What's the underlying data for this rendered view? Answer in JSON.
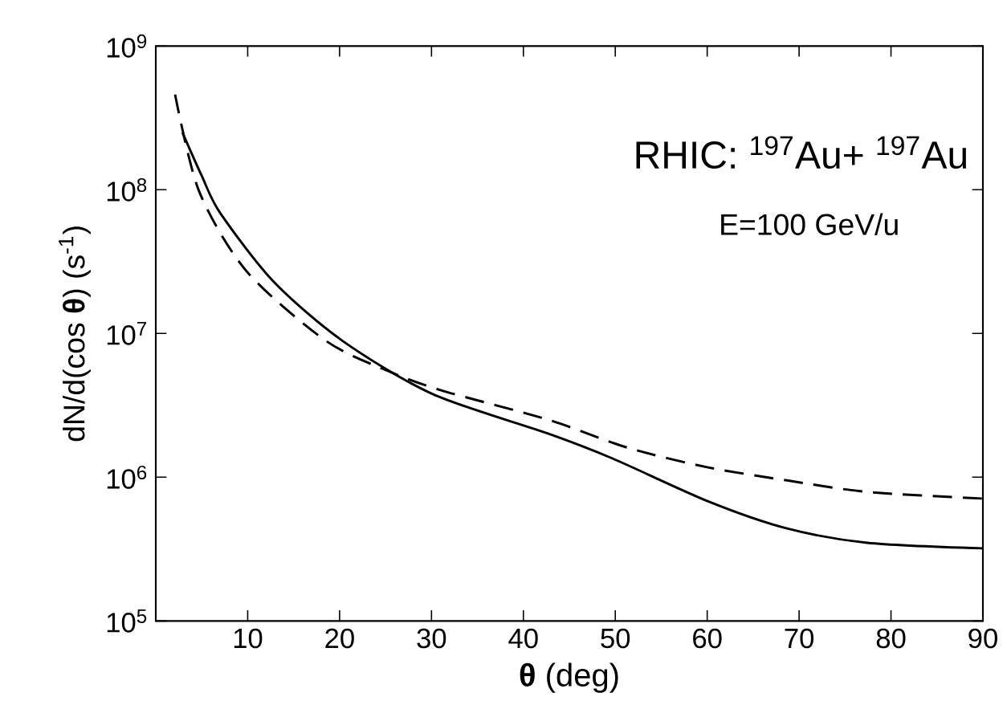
{
  "chart_data": {
    "type": "line",
    "xlabel": "**θ** (deg)",
    "ylabel": "dN/d(cos **θ**)  (s$^{-1}$)",
    "annotations": [
      "RHIC: $^{197}$Au+ $^{197}$Au",
      "E=100 GeV/u"
    ],
    "log": "y",
    "xlim": [
      0,
      90
    ],
    "ylim": [
      100000,
      1000000000
    ],
    "xticks": [
      10,
      20,
      30,
      40,
      50,
      60,
      70,
      80,
      90
    ],
    "yticks": [
      {
        "value": 100000,
        "label": "10$^{5}$"
      },
      {
        "value": 1000000,
        "label": "10$^{6}$"
      },
      {
        "value": 10000000,
        "label": "10$^{7}$"
      },
      {
        "value": 100000000,
        "label": "10$^{8}$"
      },
      {
        "value": 1000000000,
        "label": "10$^{9}$"
      }
    ],
    "series": [
      {
        "color": "#000000",
        "line_style": "solid",
        "x": [
          2.9,
          5,
          7,
          12.8,
          20.3,
          30.1,
          42.8,
          49.7,
          60.1,
          68.7,
          77.4,
          90
        ],
        "values": [
          250000000,
          125000000,
          69000000,
          23000000,
          8900000,
          3800000,
          2000000,
          1350000,
          680000,
          440000,
          350000,
          320000
        ]
      },
      {
        "color": "#000000",
        "line_style": "dashed",
        "x": [
          2.1,
          4.7,
          9.9,
          18.5,
          25.5,
          31.2,
          42.8,
          51.4,
          60.1,
          68.7,
          77.4,
          90
        ],
        "values": [
          460000000,
          98000000,
          27000000,
          8900000,
          5400000,
          4000000,
          2500000,
          1600000,
          1170000,
          950000,
          790000,
          710000
        ]
      }
    ]
  }
}
